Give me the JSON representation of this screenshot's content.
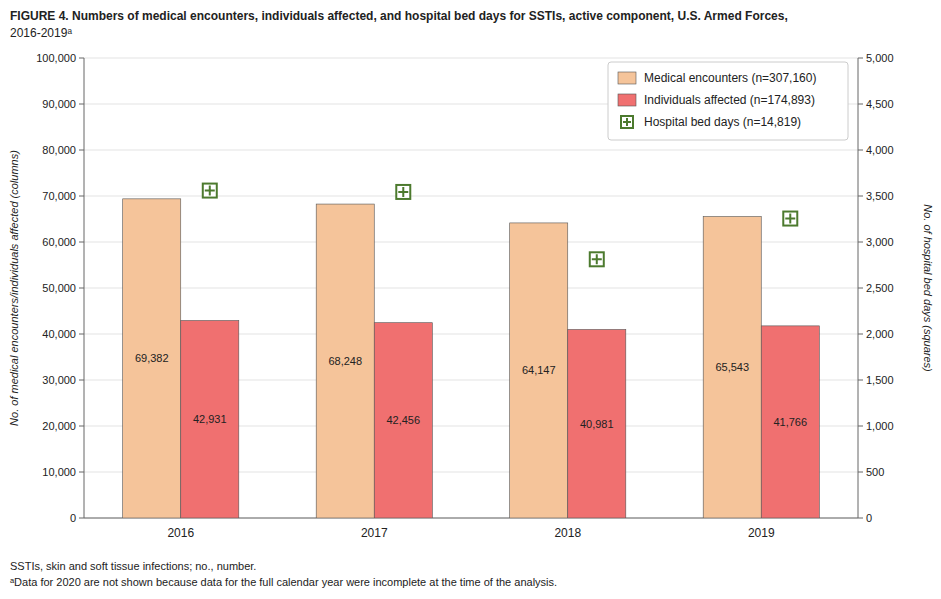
{
  "chart_data": {
    "type": "bar",
    "title": "FIGURE 4. Numbers of medical encounters, individuals affected, and hospital bed days for SSTIs, active component, U.S. Armed Forces,",
    "subtitle": "2016-2019ᵃ",
    "annotations": [
      "SSTIs, skin and soft tissue infections; no., number.",
      "ᵃData for 2020 are not shown because data for the full calendar year were incomplete at the time of the analysis."
    ],
    "ylabel": "No. of medical encounters/individuals affected (columns)",
    "y2label": "No. of hospital bed days (squares)",
    "categories": [
      "2016",
      "2017",
      "2018",
      "2019"
    ],
    "series": [
      {
        "name": "Medical encounters (n=307,160)",
        "type": "bar",
        "color": "#F5C49A",
        "values": [
          69382,
          68248,
          64147,
          65543
        ],
        "value_labels": [
          "69,382",
          "68,248",
          "64,147",
          "65,543"
        ],
        "data_labels": true
      },
      {
        "name": "Individuals affected (n=174,893)",
        "type": "bar",
        "color": "#F07070",
        "values": [
          42931,
          42456,
          40981,
          41766
        ],
        "value_labels": [
          "42,931",
          "42,456",
          "40,981",
          "41,766"
        ],
        "data_labels": true
      },
      {
        "name": "Hospital bed days (n=14,819)",
        "type": "scatter",
        "marker": "square",
        "color": "#4C7A2E",
        "axis": "y2",
        "values": [
          3559,
          3544,
          2812,
          3255
        ],
        "data_labels": false
      }
    ],
    "ylim": [
      0,
      100000
    ],
    "yticks": [
      0,
      {
        "value": 10000,
        "label": "10,000"
      },
      {
        "value": 20000,
        "label": "20,000"
      },
      {
        "value": 30000,
        "label": "30,000"
      },
      {
        "value": 40000,
        "label": "40,000"
      },
      {
        "value": 50000,
        "label": "50,000"
      },
      {
        "value": 60000,
        "label": "60,000"
      },
      {
        "value": 70000,
        "label": "70,000"
      },
      {
        "value": 80000,
        "label": "80,000"
      },
      {
        "value": 90000,
        "label": "90,000"
      },
      {
        "value": 100000,
        "label": "100,000"
      }
    ],
    "y2lim": [
      0,
      5000
    ],
    "y2ticks": [
      0,
      500,
      {
        "value": 1000,
        "label": "1,000"
      },
      {
        "value": 1500,
        "label": "1,500"
      },
      {
        "value": 2000,
        "label": "2,000"
      },
      {
        "value": 2500,
        "label": "2,500"
      },
      {
        "value": 3000,
        "label": "3,000"
      },
      {
        "value": 3500,
        "label": "3,500"
      },
      {
        "value": 4000,
        "label": "4,000"
      },
      {
        "value": 4500,
        "label": "4,500"
      },
      {
        "value": 5000,
        "label": "5,000"
      }
    ],
    "grid": true,
    "legend": "upper right"
  }
}
